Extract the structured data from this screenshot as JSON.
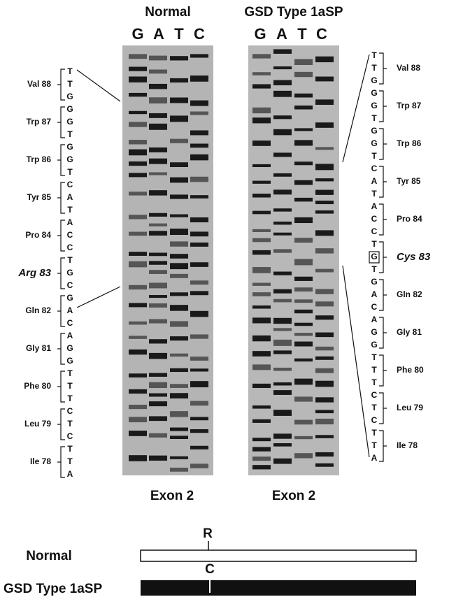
{
  "header": {
    "normal": "Normal",
    "mutant": "GSD Type 1aSP"
  },
  "lanes": {
    "left": [
      "G",
      "A",
      "T",
      "C"
    ],
    "right": [
      "G",
      "A",
      "T",
      "C"
    ]
  },
  "left_codons": [
    {
      "label": "Val 88",
      "bases": [
        "T",
        "T",
        "G"
      ]
    },
    {
      "label": "Trp 87",
      "bases": [
        "G",
        "G",
        "T"
      ]
    },
    {
      "label": "Trp 86",
      "bases": [
        "G",
        "G",
        "T"
      ]
    },
    {
      "label": "Tyr 85",
      "bases": [
        "C",
        "A",
        "T"
      ]
    },
    {
      "label": "Pro 84",
      "bases": [
        "A",
        "C",
        "C"
      ]
    },
    {
      "label": "Arg 83",
      "bases": [
        "T",
        "G",
        "C"
      ],
      "highlight": true
    },
    {
      "label": "Gln 82",
      "bases": [
        "G",
        "A",
        "C"
      ]
    },
    {
      "label": "Gly 81",
      "bases": [
        "A",
        "G",
        "G"
      ]
    },
    {
      "label": "Phe 80",
      "bases": [
        "T",
        "T",
        "T"
      ]
    },
    {
      "label": "Leu 79",
      "bases": [
        "C",
        "T",
        "C"
      ]
    },
    {
      "label": "Ile 78",
      "bases": [
        "T",
        "T",
        "A"
      ]
    }
  ],
  "right_codons": [
    {
      "label": "Val 88",
      "bases": [
        "T",
        "T",
        "G"
      ]
    },
    {
      "label": "Trp 87",
      "bases": [
        "G",
        "G",
        "T"
      ]
    },
    {
      "label": "Trp 86",
      "bases": [
        "G",
        "G",
        "T"
      ]
    },
    {
      "label": "Tyr 85",
      "bases": [
        "C",
        "A",
        "T"
      ]
    },
    {
      "label": "Pro 84",
      "bases": [
        "A",
        "C",
        "C"
      ]
    },
    {
      "label": "Cys 83",
      "bases": [
        "T",
        "G",
        "T"
      ],
      "highlight": true
    },
    {
      "label": "Gln 82",
      "bases": [
        "G",
        "A",
        "C"
      ]
    },
    {
      "label": "Gly 81",
      "bases": [
        "A",
        "G",
        "G"
      ]
    },
    {
      "label": "Phe 80",
      "bases": [
        "T",
        "T",
        "T"
      ]
    },
    {
      "label": "Leu 79",
      "bases": [
        "C",
        "T",
        "C"
      ]
    },
    {
      "label": "Ile 78",
      "bases": [
        "T",
        "T",
        "A"
      ]
    }
  ],
  "exon_labels": [
    "Exon 2",
    "Exon 2"
  ],
  "diagram": {
    "normal_label": "Normal",
    "normal_marker": "R",
    "mutant_label": "GSD Type 1aSP",
    "mutant_marker": "C"
  }
}
